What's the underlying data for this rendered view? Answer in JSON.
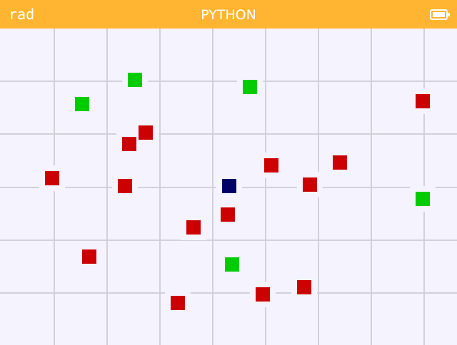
{
  "header": {
    "mode": "rad",
    "title": "PYTHON"
  }
}
